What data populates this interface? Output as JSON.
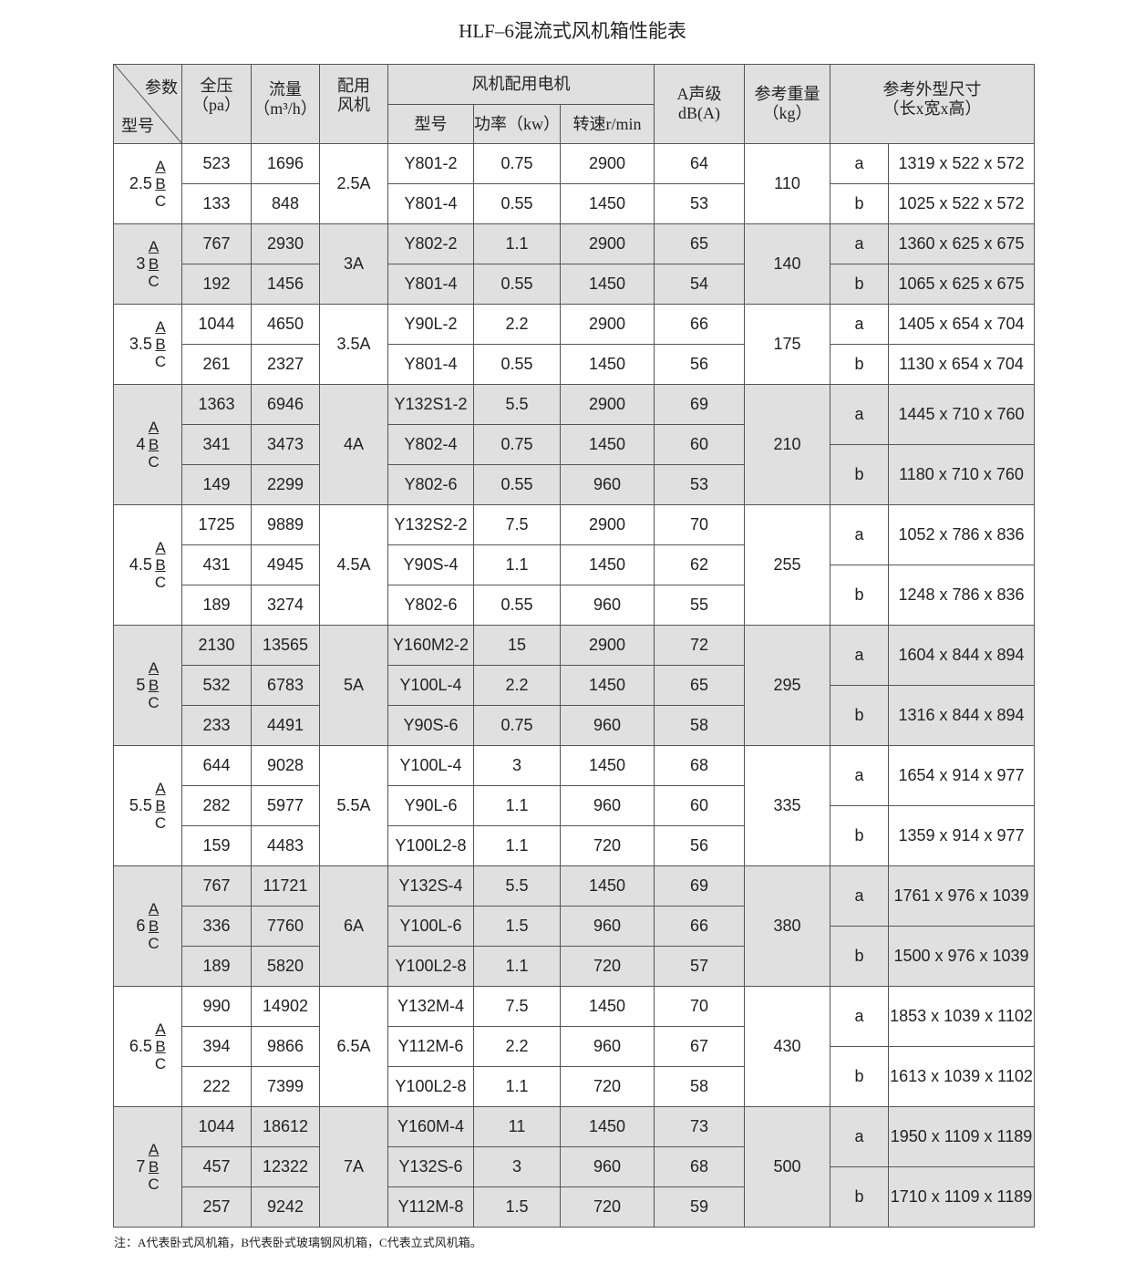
{
  "title": "HLF–6混流式风机箱性能表",
  "header": {
    "param": "参数",
    "model": "型号",
    "pressure": "全压",
    "pressure_unit": "（pa）",
    "flow": "流量",
    "flow_unit": "（m³/h）",
    "fan": "配用风机",
    "motor_group": "风机配用电机",
    "motor_model": "型号",
    "power": "功率（kw）",
    "speed": "转速r/min",
    "sound": "A声级",
    "sound_unit": "dB(A)",
    "weight": "参考重量",
    "weight_unit": "（kg）",
    "dims": "参考外型尺寸",
    "dims_unit": "（长x宽x高）"
  },
  "abc": [
    "A",
    "B",
    "C"
  ],
  "groups": [
    {
      "model": "2.5",
      "fan": "2.5A",
      "weight": "110",
      "rows": [
        [
          "523",
          "1696",
          "Y801-2",
          "0.75",
          "2900",
          "64"
        ],
        [
          "133",
          "848",
          "Y801-4",
          "0.55",
          "1450",
          "53"
        ]
      ],
      "dims": [
        [
          "a",
          "1319 x 522 x 572"
        ],
        [
          "b",
          "1025 x 522 x 572"
        ]
      ]
    },
    {
      "model": "3",
      "fan": "3A",
      "weight": "140",
      "rows": [
        [
          "767",
          "2930",
          "Y802-2",
          "1.1",
          "2900",
          "65"
        ],
        [
          "192",
          "1456",
          "Y801-4",
          "0.55",
          "1450",
          "54"
        ]
      ],
      "dims": [
        [
          "a",
          "1360 x 625 x 675"
        ],
        [
          "b",
          "1065 x 625 x 675"
        ]
      ]
    },
    {
      "model": "3.5",
      "fan": "3.5A",
      "weight": "175",
      "rows": [
        [
          "1044",
          "4650",
          "Y90L-2",
          "2.2",
          "2900",
          "66"
        ],
        [
          "261",
          "2327",
          "Y801-4",
          "0.55",
          "1450",
          "56"
        ]
      ],
      "dims": [
        [
          "a",
          "1405 x 654 x 704"
        ],
        [
          "b",
          "1130 x 654 x 704"
        ]
      ]
    },
    {
      "model": "4",
      "fan": "4A",
      "weight": "210",
      "rows": [
        [
          "1363",
          "6946",
          "Y132S1-2",
          "5.5",
          "2900",
          "69"
        ],
        [
          "341",
          "3473",
          "Y802-4",
          "0.75",
          "1450",
          "60"
        ],
        [
          "149",
          "2299",
          "Y802-6",
          "0.55",
          "960",
          "53"
        ]
      ],
      "dims": [
        [
          "a",
          "1445 x 710 x 760"
        ],
        [
          "b",
          "1180 x 710 x 760"
        ]
      ]
    },
    {
      "model": "4.5",
      "fan": "4.5A",
      "weight": "255",
      "rows": [
        [
          "1725",
          "9889",
          "Y132S2-2",
          "7.5",
          "2900",
          "70"
        ],
        [
          "431",
          "4945",
          "Y90S-4",
          "1.1",
          "1450",
          "62"
        ],
        [
          "189",
          "3274",
          "Y802-6",
          "0.55",
          "960",
          "55"
        ]
      ],
      "dims": [
        [
          "a",
          "1052 x 786 x 836"
        ],
        [
          "b",
          "1248 x 786 x 836"
        ]
      ]
    },
    {
      "model": "5",
      "fan": "5A",
      "weight": "295",
      "rows": [
        [
          "2130",
          "13565",
          "Y160M2-2",
          "15",
          "2900",
          "72"
        ],
        [
          "532",
          "6783",
          "Y100L-4",
          "2.2",
          "1450",
          "65"
        ],
        [
          "233",
          "4491",
          "Y90S-6",
          "0.75",
          "960",
          "58"
        ]
      ],
      "dims": [
        [
          "a",
          "1604 x 844 x 894"
        ],
        [
          "b",
          "1316 x 844 x 894"
        ]
      ]
    },
    {
      "model": "5.5",
      "fan": "5.5A",
      "weight": "335",
      "rows": [
        [
          "644",
          "9028",
          "Y100L-4",
          "3",
          "1450",
          "68"
        ],
        [
          "282",
          "5977",
          "Y90L-6",
          "1.1",
          "960",
          "60"
        ],
        [
          "159",
          "4483",
          "Y100L2-8",
          "1.1",
          "720",
          "56"
        ]
      ],
      "dims": [
        [
          "a",
          "1654 x 914 x 977"
        ],
        [
          "b",
          "1359 x 914 x 977"
        ]
      ]
    },
    {
      "model": "6",
      "fan": "6A",
      "weight": "380",
      "rows": [
        [
          "767",
          "11721",
          "Y132S-4",
          "5.5",
          "1450",
          "69"
        ],
        [
          "336",
          "7760",
          "Y100L-6",
          "1.5",
          "960",
          "66"
        ],
        [
          "189",
          "5820",
          "Y100L2-8",
          "1.1",
          "720",
          "57"
        ]
      ],
      "dims": [
        [
          "a",
          "1761 x 976 x 1039"
        ],
        [
          "b",
          "1500 x 976 x 1039"
        ]
      ]
    },
    {
      "model": "6.5",
      "fan": "6.5A",
      "weight": "430",
      "rows": [
        [
          "990",
          "14902",
          "Y132M-4",
          "7.5",
          "1450",
          "70"
        ],
        [
          "394",
          "9866",
          "Y112M-6",
          "2.2",
          "960",
          "67"
        ],
        [
          "222",
          "7399",
          "Y100L2-8",
          "1.1",
          "720",
          "58"
        ]
      ],
      "dims": [
        [
          "a",
          "1853 x 1039 x 1102"
        ],
        [
          "b",
          "1613 x 1039 x 1102"
        ]
      ]
    },
    {
      "model": "7",
      "fan": "7A",
      "weight": "500",
      "rows": [
        [
          "1044",
          "18612",
          "Y160M-4",
          "11",
          "1450",
          "73"
        ],
        [
          "457",
          "12322",
          "Y132S-6",
          "3",
          "960",
          "68"
        ],
        [
          "257",
          "9242",
          "Y112M-8",
          "1.5",
          "720",
          "59"
        ]
      ],
      "dims": [
        [
          "a",
          "1950 x 1109 x 1189"
        ],
        [
          "b",
          "1710 x 1109 x 1189"
        ]
      ]
    }
  ],
  "note": "注：A代表卧式风机箱，B代表卧式玻璃钢风机箱，C代表立式风机箱。",
  "colors": {
    "shade": "#e0e0e0",
    "border": "#555555"
  }
}
